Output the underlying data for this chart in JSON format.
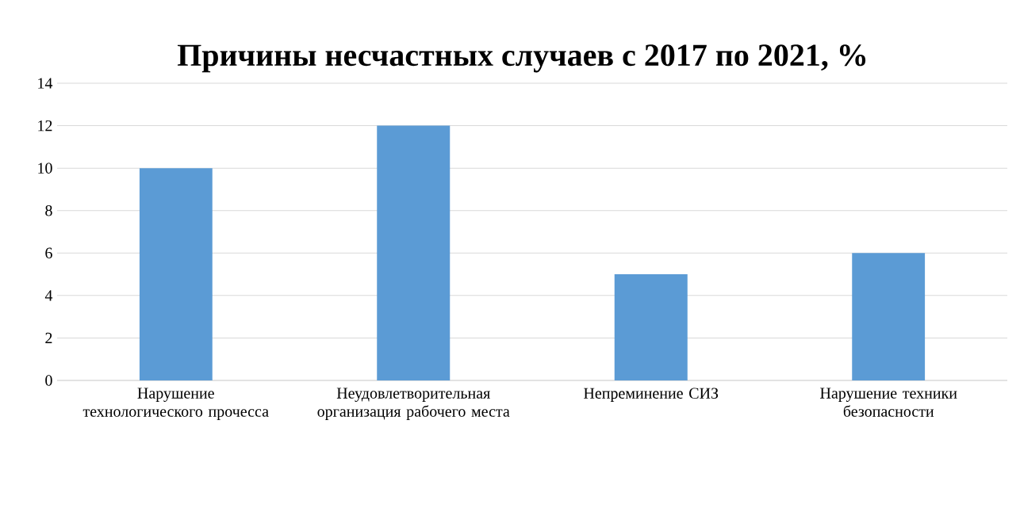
{
  "chart_data": {
    "type": "bar",
    "title": "Причины несчастных случаев с 2017 по 2021, %",
    "categories": [
      "Нарушение технологического прочесса",
      "Неудовлетворительная организация рабочего места",
      "Непреминение СИЗ",
      "Нарушение техники безопасности"
    ],
    "values": [
      10,
      12,
      5,
      6
    ],
    "color": "#5b9bd5",
    "ylim": [
      0,
      14
    ],
    "yticks": [
      0,
      2,
      4,
      6,
      8,
      10,
      12,
      14
    ],
    "grid": "y"
  }
}
